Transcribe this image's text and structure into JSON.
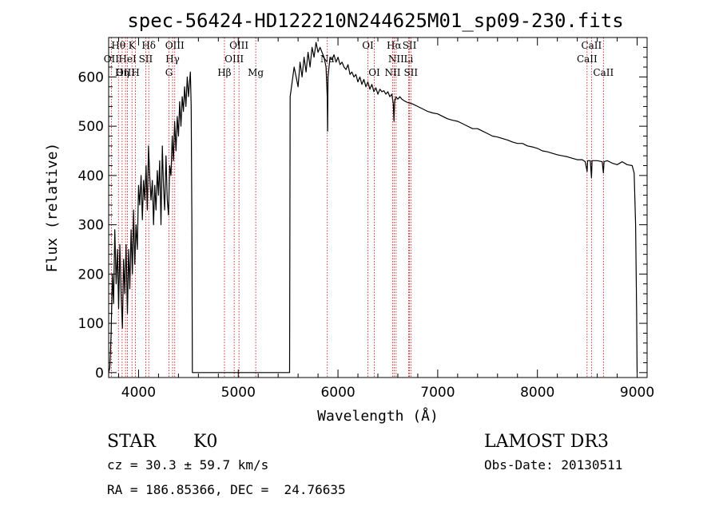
{
  "chart_data": {
    "type": "line",
    "title": "spec-56424-HD122210N244625M01_sp09-230.fits",
    "xlabel": "Wavelength (Å)",
    "ylabel": "Flux (relative)",
    "xlim": [
      3700,
      9100
    ],
    "ylim": [
      -10,
      680
    ],
    "xticks": [
      4000,
      5000,
      6000,
      7000,
      8000,
      9000
    ],
    "yticks": [
      0,
      100,
      200,
      300,
      400,
      500,
      600
    ],
    "series": [
      {
        "name": "spectrum",
        "points": [
          [
            3700,
            0
          ],
          [
            3712,
            10
          ],
          [
            3725,
            80
          ],
          [
            3738,
            200
          ],
          [
            3750,
            140
          ],
          [
            3762,
            290
          ],
          [
            3775,
            180
          ],
          [
            3788,
            250
          ],
          [
            3800,
            130
          ],
          [
            3812,
            260
          ],
          [
            3825,
            160
          ],
          [
            3838,
            90
          ],
          [
            3850,
            230
          ],
          [
            3862,
            160
          ],
          [
            3875,
            260
          ],
          [
            3888,
            120
          ],
          [
            3900,
            250
          ],
          [
            3912,
            170
          ],
          [
            3925,
            290
          ],
          [
            3938,
            200
          ],
          [
            3950,
            330
          ],
          [
            3962,
            220
          ],
          [
            3975,
            300
          ],
          [
            3988,
            250
          ],
          [
            4000,
            380
          ],
          [
            4012,
            340
          ],
          [
            4025,
            400
          ],
          [
            4038,
            310
          ],
          [
            4050,
            390
          ],
          [
            4062,
            350
          ],
          [
            4075,
            420
          ],
          [
            4088,
            330
          ],
          [
            4100,
            460
          ],
          [
            4112,
            400
          ],
          [
            4125,
            350
          ],
          [
            4138,
            390
          ],
          [
            4150,
            300
          ],
          [
            4162,
            380
          ],
          [
            4175,
            330
          ],
          [
            4188,
            410
          ],
          [
            4200,
            360
          ],
          [
            4212,
            430
          ],
          [
            4225,
            300
          ],
          [
            4238,
            460
          ],
          [
            4250,
            380
          ],
          [
            4262,
            330
          ],
          [
            4275,
            440
          ],
          [
            4288,
            350
          ],
          [
            4300,
            320
          ],
          [
            4312,
            420
          ],
          [
            4325,
            400
          ],
          [
            4338,
            480
          ],
          [
            4350,
            430
          ],
          [
            4362,
            510
          ],
          [
            4375,
            450
          ],
          [
            4388,
            520
          ],
          [
            4400,
            480
          ],
          [
            4412,
            550
          ],
          [
            4425,
            500
          ],
          [
            4438,
            560
          ],
          [
            4450,
            530
          ],
          [
            4462,
            580
          ],
          [
            4475,
            540
          ],
          [
            4488,
            600
          ],
          [
            4500,
            560
          ],
          [
            4512,
            590
          ],
          [
            4520,
            610
          ],
          [
            4528,
            540
          ],
          [
            4535,
            300
          ],
          [
            4540,
            0
          ],
          [
            5515,
            0
          ],
          [
            5520,
            560
          ],
          [
            5540,
            590
          ],
          [
            5560,
            620
          ],
          [
            5580,
            600
          ],
          [
            5600,
            580
          ],
          [
            5620,
            630
          ],
          [
            5640,
            600
          ],
          [
            5660,
            640
          ],
          [
            5680,
            610
          ],
          [
            5700,
            650
          ],
          [
            5720,
            620
          ],
          [
            5740,
            660
          ],
          [
            5760,
            640
          ],
          [
            5780,
            670
          ],
          [
            5800,
            650
          ],
          [
            5820,
            660
          ],
          [
            5840,
            650
          ],
          [
            5860,
            640
          ],
          [
            5880,
            620
          ],
          [
            5892,
            560
          ],
          [
            5896,
            490
          ],
          [
            5900,
            600
          ],
          [
            5920,
            640
          ],
          [
            5940,
            635
          ],
          [
            5960,
            645
          ],
          [
            5980,
            630
          ],
          [
            6000,
            640
          ],
          [
            6020,
            625
          ],
          [
            6040,
            630
          ],
          [
            6060,
            620
          ],
          [
            6080,
            615
          ],
          [
            6100,
            625
          ],
          [
            6120,
            605
          ],
          [
            6140,
            610
          ],
          [
            6160,
            600
          ],
          [
            6180,
            605
          ],
          [
            6200,
            590
          ],
          [
            6220,
            600
          ],
          [
            6240,
            585
          ],
          [
            6260,
            595
          ],
          [
            6280,
            580
          ],
          [
            6300,
            590
          ],
          [
            6320,
            575
          ],
          [
            6340,
            585
          ],
          [
            6360,
            570
          ],
          [
            6380,
            578
          ],
          [
            6400,
            565
          ],
          [
            6420,
            575
          ],
          [
            6440,
            570
          ],
          [
            6460,
            572
          ],
          [
            6480,
            565
          ],
          [
            6500,
            570
          ],
          [
            6520,
            560
          ],
          [
            6540,
            565
          ],
          [
            6555,
            545
          ],
          [
            6562,
            510
          ],
          [
            6568,
            550
          ],
          [
            6580,
            560
          ],
          [
            6600,
            555
          ],
          [
            6620,
            560
          ],
          [
            6640,
            555
          ],
          [
            6660,
            552
          ],
          [
            6680,
            550
          ],
          [
            6700,
            548
          ],
          [
            6750,
            545
          ],
          [
            6800,
            540
          ],
          [
            6850,
            535
          ],
          [
            6900,
            530
          ],
          [
            6950,
            527
          ],
          [
            7000,
            525
          ],
          [
            7050,
            520
          ],
          [
            7100,
            515
          ],
          [
            7150,
            512
          ],
          [
            7200,
            510
          ],
          [
            7250,
            505
          ],
          [
            7300,
            500
          ],
          [
            7350,
            495
          ],
          [
            7400,
            495
          ],
          [
            7450,
            490
          ],
          [
            7500,
            485
          ],
          [
            7550,
            480
          ],
          [
            7600,
            478
          ],
          [
            7650,
            475
          ],
          [
            7700,
            472
          ],
          [
            7750,
            468
          ],
          [
            7800,
            465
          ],
          [
            7850,
            465
          ],
          [
            7900,
            460
          ],
          [
            7950,
            458
          ],
          [
            8000,
            455
          ],
          [
            8050,
            450
          ],
          [
            8100,
            448
          ],
          [
            8150,
            445
          ],
          [
            8200,
            442
          ],
          [
            8250,
            440
          ],
          [
            8300,
            438
          ],
          [
            8350,
            435
          ],
          [
            8400,
            432
          ],
          [
            8450,
            432
          ],
          [
            8480,
            428
          ],
          [
            8498,
            408
          ],
          [
            8504,
            430
          ],
          [
            8530,
            430
          ],
          [
            8542,
            395
          ],
          [
            8548,
            430
          ],
          [
            8600,
            430
          ],
          [
            8650,
            428
          ],
          [
            8662,
            405
          ],
          [
            8668,
            428
          ],
          [
            8700,
            430
          ],
          [
            8750,
            425
          ],
          [
            8800,
            422
          ],
          [
            8850,
            428
          ],
          [
            8900,
            422
          ],
          [
            8950,
            420
          ],
          [
            8970,
            405
          ],
          [
            8985,
            300
          ],
          [
            8995,
            120
          ],
          [
            9000,
            0
          ]
        ]
      }
    ],
    "spectral_lines": [
      {
        "label": "Hθ",
        "wl": 3798,
        "row": 1
      },
      {
        "label": "OII",
        "wl": 3727,
        "row": 2
      },
      {
        "label": "OIII",
        "wl": 3869,
        "row": 3
      },
      {
        "label": "K",
        "wl": 3934,
        "row": 1
      },
      {
        "label": "HeI",
        "wl": 3889,
        "row": 2
      },
      {
        "label": "Hη",
        "wl": 3835,
        "row": 3
      },
      {
        "label": "Hδ",
        "wl": 4102,
        "row": 1
      },
      {
        "label": "SII",
        "wl": 4072,
        "row": 2
      },
      {
        "label": "H",
        "wl": 3969,
        "row": 3
      },
      {
        "label": "OIII",
        "wl": 4363,
        "row": 1
      },
      {
        "label": "Hγ",
        "wl": 4341,
        "row": 2
      },
      {
        "label": "G",
        "wl": 4305,
        "row": 3
      },
      {
        "label": "OIII",
        "wl": 5007,
        "row": 1
      },
      {
        "label": "OIII",
        "wl": 4959,
        "row": 2
      },
      {
        "label": "Hβ",
        "wl": 4861,
        "row": 3
      },
      {
        "label": "Mg",
        "wl": 5175,
        "row": 3
      },
      {
        "label": "Na",
        "wl": 5893,
        "row": 2
      },
      {
        "label": "OI",
        "wl": 6300,
        "row": 1
      },
      {
        "label": "OI",
        "wl": 6364,
        "row": 3
      },
      {
        "label": "Hα",
        "wl": 6563,
        "row": 1
      },
      {
        "label": "NII",
        "wl": 6583,
        "row": 2
      },
      {
        "label": "NII",
        "wl": 6548,
        "row": 3
      },
      {
        "label": "SII",
        "wl": 6717,
        "row": 1
      },
      {
        "label": "Li",
        "wl": 6708,
        "row": 2
      },
      {
        "label": "SII",
        "wl": 6731,
        "row": 3
      },
      {
        "label": "CaII",
        "wl": 8542,
        "row": 1
      },
      {
        "label": "CaII",
        "wl": 8498,
        "row": 2
      },
      {
        "label": "CaII",
        "wl": 8662,
        "row": 3
      }
    ]
  },
  "info": {
    "object_type": "STAR",
    "subclass": "K0",
    "survey": "LAMOST DR3",
    "redshift": "cz = 30.3 ± 59.7 km/s",
    "obs_date": "Obs-Date: 20130511",
    "coords": "RA = 186.85366, DEC =  24.76635"
  },
  "colors": {
    "line_marker": "#cc0000",
    "spectrum": "#000000"
  }
}
